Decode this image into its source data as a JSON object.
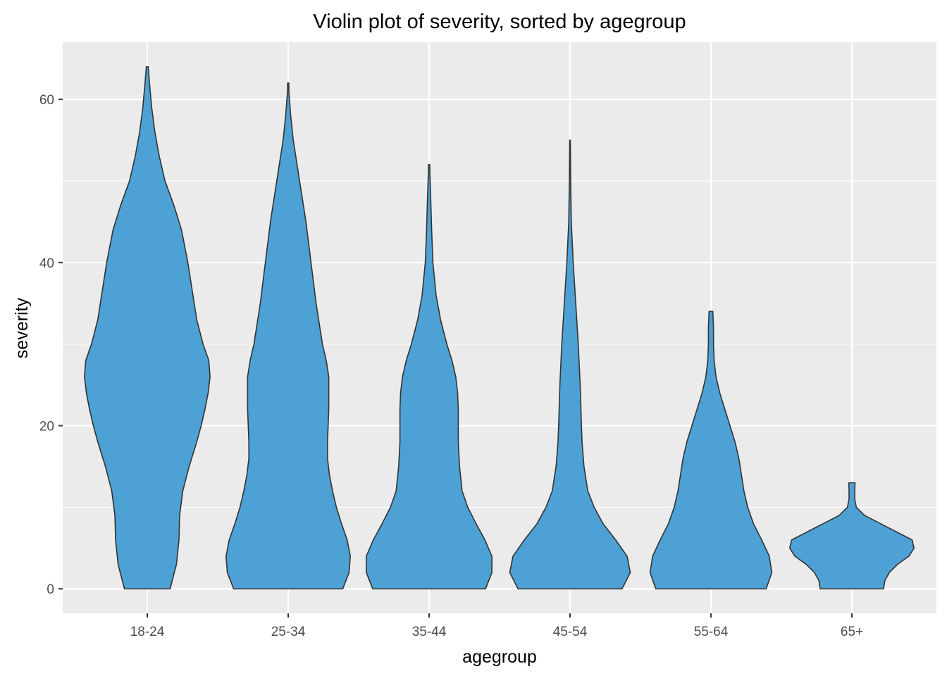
{
  "chart_data": {
    "type": "violin",
    "title": "Violin plot of severity, sorted by agegroup",
    "xlabel": "agegroup",
    "ylabel": "severity",
    "categories": [
      "18-24",
      "25-34",
      "35-44",
      "45-54",
      "55-64",
      "65+"
    ],
    "ylim": [
      -3,
      67
    ],
    "yticks": [
      0,
      20,
      40,
      60
    ],
    "yticks_minor": [
      10,
      30,
      50
    ],
    "grid": true,
    "legend": "none",
    "colors": {
      "fill": "#4DA1D4",
      "outline": "#333333",
      "panel": "#EBEBEB",
      "grid": "#FFFFFF"
    },
    "violins": [
      {
        "group": "18-24",
        "min": 0,
        "max": 64,
        "density": [
          [
            0,
            0.36
          ],
          [
            3,
            0.46
          ],
          [
            6,
            0.5
          ],
          [
            9,
            0.51
          ],
          [
            12,
            0.56
          ],
          [
            15,
            0.66
          ],
          [
            18,
            0.78
          ],
          [
            20,
            0.85
          ],
          [
            22,
            0.91
          ],
          [
            24,
            0.96
          ],
          [
            26,
            0.99
          ],
          [
            28,
            0.97
          ],
          [
            30,
            0.88
          ],
          [
            33,
            0.78
          ],
          [
            36,
            0.72
          ],
          [
            40,
            0.64
          ],
          [
            44,
            0.54
          ],
          [
            47,
            0.42
          ],
          [
            50,
            0.28
          ],
          [
            53,
            0.19
          ],
          [
            56,
            0.12
          ],
          [
            59,
            0.07
          ],
          [
            62,
            0.035
          ],
          [
            64,
            0.015
          ]
        ]
      },
      {
        "group": "25-34",
        "min": 0,
        "max": 62,
        "density": [
          [
            0,
            0.86
          ],
          [
            2,
            0.96
          ],
          [
            4,
            0.98
          ],
          [
            6,
            0.93
          ],
          [
            8,
            0.84
          ],
          [
            10,
            0.76
          ],
          [
            12,
            0.7
          ],
          [
            14,
            0.65
          ],
          [
            16,
            0.62
          ],
          [
            18,
            0.62
          ],
          [
            20,
            0.63
          ],
          [
            22,
            0.64
          ],
          [
            24,
            0.64
          ],
          [
            26,
            0.64
          ],
          [
            28,
            0.6
          ],
          [
            30,
            0.54
          ],
          [
            35,
            0.44
          ],
          [
            40,
            0.36
          ],
          [
            45,
            0.28
          ],
          [
            50,
            0.18
          ],
          [
            55,
            0.08
          ],
          [
            58,
            0.04
          ],
          [
            61,
            0.01
          ],
          [
            62,
            0.01
          ]
        ]
      },
      {
        "group": "35-44",
        "min": 0,
        "max": 52,
        "density": [
          [
            0,
            0.89
          ],
          [
            2,
            0.99
          ],
          [
            4,
            0.99
          ],
          [
            6,
            0.88
          ],
          [
            8,
            0.74
          ],
          [
            10,
            0.61
          ],
          [
            12,
            0.52
          ],
          [
            15,
            0.48
          ],
          [
            18,
            0.46
          ],
          [
            20,
            0.46
          ],
          [
            22,
            0.46
          ],
          [
            24,
            0.45
          ],
          [
            26,
            0.42
          ],
          [
            28,
            0.36
          ],
          [
            30,
            0.28
          ],
          [
            33,
            0.18
          ],
          [
            36,
            0.11
          ],
          [
            40,
            0.06
          ],
          [
            44,
            0.04
          ],
          [
            48,
            0.025
          ],
          [
            51,
            0.012
          ],
          [
            52,
            0.01
          ]
        ]
      },
      {
        "group": "45-54",
        "min": 0,
        "max": 55,
        "density": [
          [
            0,
            0.82
          ],
          [
            2,
            0.95
          ],
          [
            4,
            0.9
          ],
          [
            6,
            0.72
          ],
          [
            8,
            0.52
          ],
          [
            10,
            0.38
          ],
          [
            12,
            0.28
          ],
          [
            15,
            0.22
          ],
          [
            18,
            0.19
          ],
          [
            20,
            0.18
          ],
          [
            25,
            0.16
          ],
          [
            30,
            0.13
          ],
          [
            35,
            0.09
          ],
          [
            40,
            0.05
          ],
          [
            45,
            0.02
          ],
          [
            50,
            0.01
          ],
          [
            55,
            0.005
          ]
        ]
      },
      {
        "group": "55-64",
        "min": 0,
        "max": 34,
        "density": [
          [
            0,
            0.87
          ],
          [
            2,
            0.96
          ],
          [
            4,
            0.92
          ],
          [
            6,
            0.8
          ],
          [
            8,
            0.67
          ],
          [
            10,
            0.58
          ],
          [
            12,
            0.52
          ],
          [
            14,
            0.48
          ],
          [
            16,
            0.44
          ],
          [
            18,
            0.38
          ],
          [
            20,
            0.3
          ],
          [
            22,
            0.22
          ],
          [
            24,
            0.14
          ],
          [
            26,
            0.08
          ],
          [
            28,
            0.05
          ],
          [
            30,
            0.04
          ],
          [
            32,
            0.04
          ],
          [
            34,
            0.03
          ]
        ]
      },
      {
        "group": "65+",
        "min": 0,
        "max": 13,
        "density": [
          [
            0,
            0.5
          ],
          [
            1,
            0.52
          ],
          [
            2,
            0.59
          ],
          [
            3,
            0.72
          ],
          [
            4,
            0.9
          ],
          [
            5,
            0.98
          ],
          [
            6,
            0.95
          ],
          [
            7,
            0.7
          ],
          [
            8,
            0.45
          ],
          [
            9,
            0.2
          ],
          [
            10,
            0.07
          ],
          [
            11,
            0.045
          ],
          [
            12,
            0.045
          ],
          [
            13,
            0.05
          ]
        ]
      }
    ]
  }
}
